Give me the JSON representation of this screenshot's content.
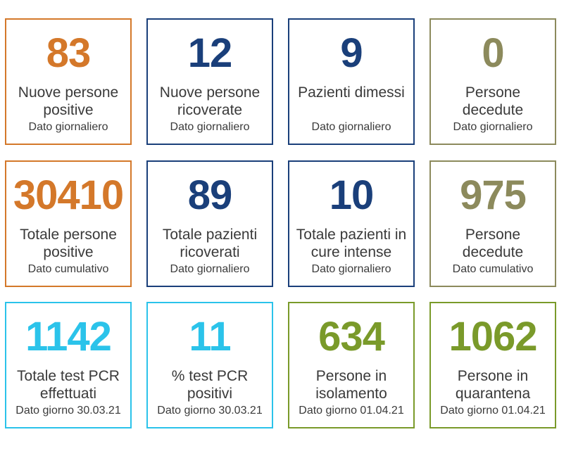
{
  "cards": [
    {
      "value": "83",
      "label": "Nuove persone positive",
      "sub": "Dato giornaliero",
      "color": "#d4782a"
    },
    {
      "value": "12",
      "label": "Nuove persone ricoverate",
      "sub": "Dato giornaliero",
      "color": "#1a3f7a"
    },
    {
      "value": "9",
      "label": "Pazienti dimessi",
      "sub": "Dato giornaliero",
      "color": "#1a3f7a"
    },
    {
      "value": "0",
      "label": "Persone decedute",
      "sub": "Dato giornaliero",
      "color": "#8c8a5c"
    },
    {
      "value": "30410",
      "label": "Totale persone positive",
      "sub": "Dato cumulativo",
      "color": "#d4782a"
    },
    {
      "value": "89",
      "label": "Totale pazienti ricoverati",
      "sub": "Dato giornaliero",
      "color": "#1a3f7a"
    },
    {
      "value": "10",
      "label": "Totale pazienti in cure intense",
      "sub": "Dato giornaliero",
      "color": "#1a3f7a"
    },
    {
      "value": "975",
      "label": "Persone decedute",
      "sub": "Dato cumulativo",
      "color": "#8c8a5c"
    },
    {
      "value": "1142",
      "label": "Totale test PCR effettuati",
      "sub": "Dato giorno 30.03.21",
      "color": "#2bc3ea"
    },
    {
      "value": "11",
      "label": "% test PCR positivi",
      "sub": "Dato giorno 30.03.21",
      "color": "#2bc3ea"
    },
    {
      "value": "634",
      "label": "Persone in isolamento",
      "sub": "Dato giorno 01.04.21",
      "color": "#7a9a2a"
    },
    {
      "value": "1062",
      "label": "Persone in quarantena",
      "sub": "Dato giorno 01.04.21",
      "color": "#7a9a2a"
    }
  ]
}
